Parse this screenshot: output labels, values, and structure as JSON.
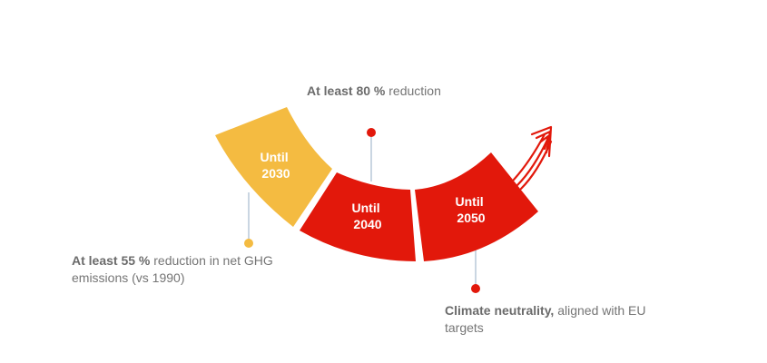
{
  "colors": {
    "yellow": "#F4BB41",
    "red": "#E2180B",
    "connector": "#B8C8D8",
    "text": "#757575"
  },
  "segments": [
    {
      "line1": "Until",
      "line2": "2030",
      "color": "yellow"
    },
    {
      "line1": "Until",
      "line2": "2040",
      "color": "red"
    },
    {
      "line1": "Until",
      "line2": "2050",
      "color": "red"
    }
  ],
  "annotations": {
    "y2030": {
      "bold": "At least 55 %",
      "text": " reduction in net GHG emissions (vs 1990)"
    },
    "y2040": {
      "bold": "At least 80 %",
      "text": " reduction"
    },
    "y2050": {
      "bold": "Climate neutrality,",
      "text": " aligned with EU targets"
    }
  },
  "arrow": {
    "icon": "upward-trend-arrow-icon"
  }
}
